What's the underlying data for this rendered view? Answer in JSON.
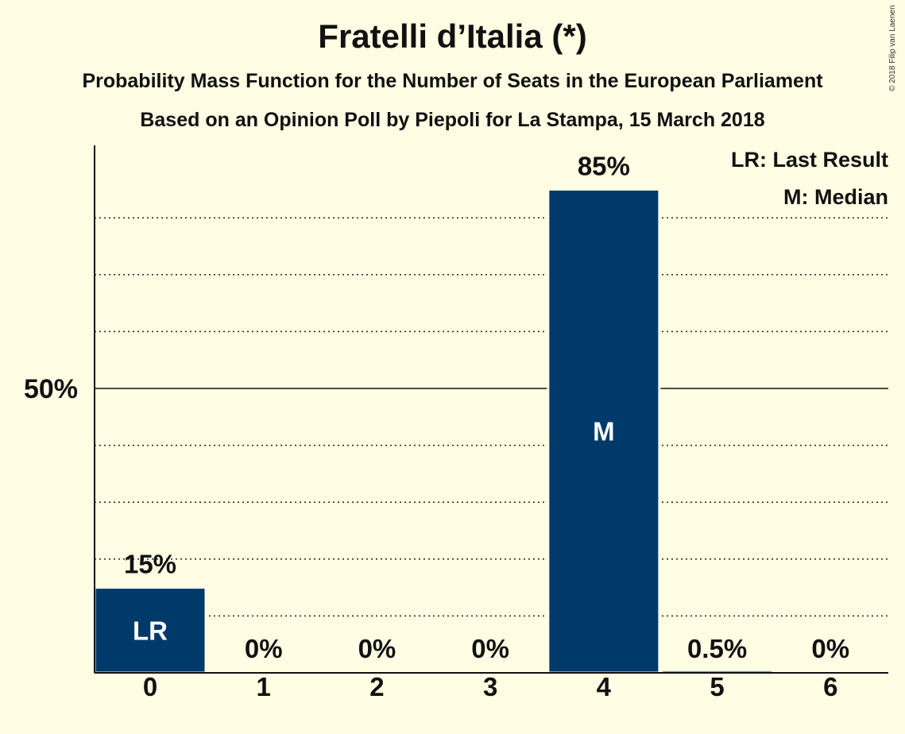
{
  "title": "Fratelli d’Italia (*)",
  "subtitle": "Probability Mass Function for the Number of Seats in the European Parliament",
  "subtitle2": "Based on an Opinion Poll by Piepoli for La Stampa, 15 March 2018",
  "copyright": "© 2018 Filip van Laenen",
  "legend": [
    "LR: Last Result",
    "M: Median"
  ],
  "colors": {
    "bar": "#003a6a",
    "background": "#fffde3"
  },
  "chart_data": {
    "type": "bar",
    "categories": [
      "0",
      "1",
      "2",
      "3",
      "4",
      "5",
      "6"
    ],
    "values": [
      15,
      0,
      0,
      0,
      85,
      0.5,
      0
    ],
    "value_labels": [
      "15%",
      "0%",
      "0%",
      "0%",
      "85%",
      "0.5%",
      "0%"
    ],
    "bar_markers": [
      "LR",
      "",
      "",
      "",
      "M",
      "",
      ""
    ],
    "ytick_labels": [
      {
        "value": 50,
        "label": "50%"
      }
    ],
    "ylim": [
      0,
      92
    ],
    "grid_lines": [
      10,
      20,
      30,
      40,
      60,
      70,
      80
    ],
    "grid": "dotted",
    "legend_position": "top-right"
  }
}
